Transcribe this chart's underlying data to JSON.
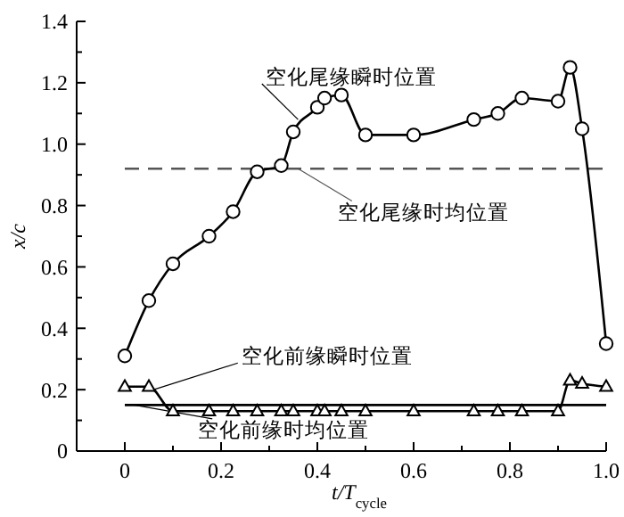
{
  "chart_data": {
    "type": "line",
    "xlabel": "t/T$_{cycle}$",
    "ylabel": "x/c",
    "xlim": [
      -0.1,
      1.0
    ],
    "ylim": [
      0,
      1.4
    ],
    "xticks": [
      0,
      {
        "value": 0.1,
        "label": null
      },
      0.2,
      {
        "value": 0.3,
        "label": null
      },
      0.4,
      {
        "value": 0.5,
        "label": null
      },
      0.6,
      {
        "value": 0.7,
        "label": null
      },
      0.8,
      {
        "value": 0.9,
        "label": null
      },
      {
        "value": 1,
        "label": "1.0"
      }
    ],
    "yticks": [
      0,
      {
        "value": 0.1,
        "label": null
      },
      0.2,
      {
        "value": 0.3,
        "label": null
      },
      0.4,
      {
        "value": 0.5,
        "label": null
      },
      0.6,
      {
        "value": 0.7,
        "label": null
      },
      0.8,
      {
        "value": 0.9,
        "label": null
      },
      {
        "value": 1,
        "label": "1.0"
      },
      {
        "value": 1.1,
        "label": null
      },
      1.2,
      {
        "value": 1.3,
        "label": null
      },
      1.4
    ],
    "grid": false,
    "line_style": "solid",
    "series": [
      {
        "name": "空化尾缘瞬时位置",
        "color": "#000000",
        "marker": "circle",
        "x": [
          0,
          0.05,
          0.1,
          0.175,
          0.225,
          0.275,
          0.325,
          0.35,
          0.4,
          0.415,
          0.45,
          0.5,
          0.6,
          0.725,
          0.775,
          0.825,
          0.9,
          0.925,
          0.95,
          1.0
        ],
        "values": [
          0.31,
          0.49,
          0.61,
          0.7,
          0.78,
          0.91,
          0.93,
          1.04,
          1.12,
          1.15,
          1.16,
          1.03,
          1.03,
          1.08,
          1.1,
          1.15,
          1.14,
          1.25,
          1.05,
          0.35
        ]
      },
      {
        "name": "空化前缘瞬时位置",
        "color": "#000000",
        "marker": "triangle",
        "x": [
          0,
          0.05,
          0.1,
          0.175,
          0.225,
          0.275,
          0.325,
          0.35,
          0.4,
          0.415,
          0.45,
          0.5,
          0.6,
          0.725,
          0.775,
          0.825,
          0.9,
          0.925,
          0.95,
          1.0
        ],
        "values": [
          0.21,
          0.21,
          0.13,
          0.13,
          0.13,
          0.13,
          0.13,
          0.13,
          0.13,
          0.13,
          0.13,
          0.13,
          0.13,
          0.13,
          0.13,
          0.13,
          0.13,
          0.23,
          0.22,
          0.21
        ]
      }
    ],
    "ref_lines": [
      {
        "axis": "y",
        "value": 0.92,
        "label": "空化尾缘时均位置",
        "color": "#555555",
        "line_style": "dashed"
      },
      {
        "axis": "y",
        "value": 0.15,
        "label": "空化前缘时均位置",
        "color": "#000000",
        "line_style": "solid"
      }
    ]
  }
}
